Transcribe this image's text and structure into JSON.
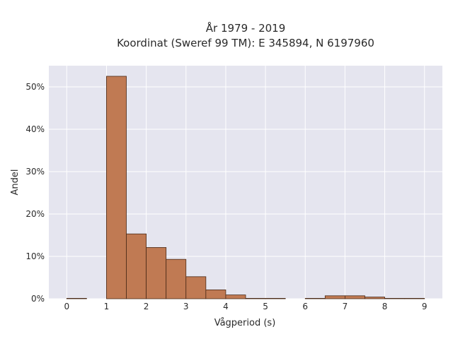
{
  "chart_data": {
    "type": "bar",
    "title": "År 1979 - 2019",
    "subtitle": "Koordinat (Sweref 99 TM): E 345894, N 6197960",
    "xlabel": "Vågperiod (s)",
    "ylabel": "Andel",
    "x_ticks": [
      0,
      1,
      2,
      3,
      4,
      5,
      6,
      7,
      8,
      9
    ],
    "y_ticks": [
      0,
      10,
      20,
      30,
      40,
      50
    ],
    "y_tick_labels": [
      "0%",
      "10%",
      "20%",
      "30%",
      "40%",
      "50%"
    ],
    "xlim": [
      -0.45,
      9.45
    ],
    "ylim": [
      0,
      55
    ],
    "bin_width": 0.5,
    "bins": [
      {
        "start": 0.0,
        "value": 0.1
      },
      {
        "start": 0.5,
        "value": 0.0
      },
      {
        "start": 1.0,
        "value": 52.5
      },
      {
        "start": 1.5,
        "value": 15.3
      },
      {
        "start": 2.0,
        "value": 12.1
      },
      {
        "start": 2.5,
        "value": 9.3
      },
      {
        "start": 3.0,
        "value": 5.2
      },
      {
        "start": 3.5,
        "value": 2.1
      },
      {
        "start": 4.0,
        "value": 0.9
      },
      {
        "start": 4.5,
        "value": 0.1
      },
      {
        "start": 5.0,
        "value": 0.1
      },
      {
        "start": 5.5,
        "value": 0.0
      },
      {
        "start": 6.0,
        "value": 0.1
      },
      {
        "start": 6.5,
        "value": 0.7
      },
      {
        "start": 7.0,
        "value": 0.7
      },
      {
        "start": 7.5,
        "value": 0.4
      },
      {
        "start": 8.0,
        "value": 0.1
      },
      {
        "start": 8.5,
        "value": 0.1
      }
    ],
    "grid": true,
    "legend": "none"
  },
  "colors": {
    "bar_fill": "#c07a53",
    "bar_edge": "#4a2a18",
    "plot_background": "#e5e5ef",
    "grid": "#ffffff"
  }
}
